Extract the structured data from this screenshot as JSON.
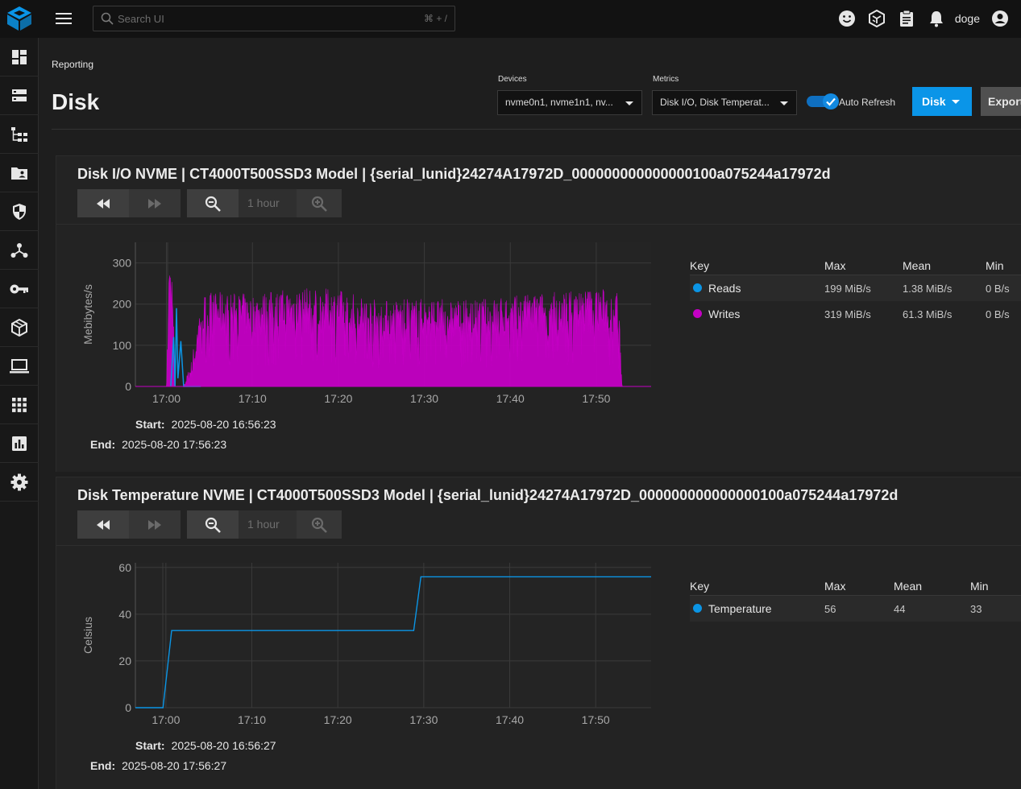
{
  "header": {
    "search_placeholder": "Search UI",
    "search_shortcut": "⌘ + /",
    "username": "doge",
    "icons": [
      "smile-icon",
      "truecommand-icon",
      "clipboard-icon",
      "bell-icon",
      "account-circle-icon"
    ]
  },
  "sidebar": {
    "items": [
      {
        "name": "dashboard",
        "icon": "dashboard-icon"
      },
      {
        "name": "storage",
        "icon": "storage-icon"
      },
      {
        "name": "datasets",
        "icon": "datasets-icon"
      },
      {
        "name": "shares",
        "icon": "folder-shared-icon"
      },
      {
        "name": "data-protection",
        "icon": "security-icon"
      },
      {
        "name": "network",
        "icon": "network-icon"
      },
      {
        "name": "credentials",
        "icon": "key-icon"
      },
      {
        "name": "virtualization",
        "icon": "cube-icon"
      },
      {
        "name": "apps",
        "icon": "laptop-icon"
      },
      {
        "name": "system",
        "icon": "apps-grid-icon"
      },
      {
        "name": "reporting",
        "icon": "insert-chart-icon"
      },
      {
        "name": "settings",
        "icon": "settings-icon"
      }
    ]
  },
  "page": {
    "breadcrumb": "Reporting",
    "title": "Disk",
    "devices_label": "Devices",
    "devices_value": "nvme0n1, nvme1n1, nv...",
    "metrics_label": "Metrics",
    "metrics_value": "Disk I/O, Disk Temperat...",
    "auto_refresh_label": "Auto Refresh",
    "auto_refresh_on": true,
    "disk_button": "Disk",
    "export_button": "Export"
  },
  "cards": [
    {
      "title": "Disk I/O NVME | CT4000T500SSD3 Model | {serial_lunid}24274A17972D_000000000000000100a075244a17972d",
      "zoom_label": "1 hour",
      "legend": {
        "headers": [
          "Key",
          "Max",
          "Mean",
          "Min"
        ],
        "rows": [
          {
            "key": "Reads",
            "max": "199 MiB/s",
            "mean": "1.38 MiB/s",
            "min": "0 B/s",
            "color": "#0b95e5"
          },
          {
            "key": "Writes",
            "max": "319 MiB/s",
            "mean": "61.3 MiB/s",
            "min": "0 B/s",
            "color": "#c400c4"
          }
        ]
      },
      "start_label": "Start:",
      "start": "2025-08-20 16:56:23",
      "end_label": "End:",
      "end": "2025-08-20 17:56:23"
    },
    {
      "title": "Disk Temperature NVME | CT4000T500SSD3 Model | {serial_lunid}24274A17972D_000000000000000100a075244a17972d",
      "zoom_label": "1 hour",
      "legend": {
        "headers": [
          "Key",
          "Max",
          "Mean",
          "Min"
        ],
        "rows": [
          {
            "key": "Temperature",
            "max": "56",
            "mean": "44",
            "min": "33",
            "color": "#0b95e5"
          }
        ]
      },
      "start_label": "Start:",
      "start": "2025-08-20 16:56:27",
      "end_label": "End:",
      "end": "2025-08-20 17:56:27"
    }
  ],
  "chart_data": [
    {
      "type": "area",
      "ylabel": "Mebibytes/s",
      "xlim": [
        "16:56:23",
        "17:56:23"
      ],
      "ylim": [
        0,
        350
      ],
      "yticks": [
        "0",
        "100",
        "200",
        "300"
      ],
      "xticks": [
        "17:00",
        "17:10",
        "17:20",
        "17:30",
        "17:40",
        "17:50"
      ],
      "grid": true,
      "series": [
        {
          "name": "Reads",
          "color": "#0b95e5",
          "x": [
            "17:00:30",
            "17:00:50",
            "17:01:00",
            "17:01:10",
            "17:01:20",
            "17:01:40",
            "17:02:00",
            "17:04:00"
          ],
          "values": [
            0,
            120,
            0,
            190,
            20,
            110,
            0,
            0
          ]
        },
        {
          "name": "Writes",
          "color": "#c400c4",
          "x": [
            "16:56:23",
            "17:00:00",
            "17:00:20",
            "17:00:40",
            "17:01:00",
            "17:02:00",
            "17:03:00",
            "17:04:00",
            "17:05:00",
            "17:10:00",
            "17:15:00",
            "17:20:00",
            "17:25:00",
            "17:30:00",
            "17:35:00",
            "17:40:00",
            "17:45:00",
            "17:50:00",
            "17:52:30",
            "17:53:00",
            "17:56:23"
          ],
          "values": [
            0,
            0,
            319,
            260,
            0,
            0,
            60,
            210,
            220,
            215,
            230,
            225,
            200,
            205,
            200,
            210,
            220,
            230,
            220,
            0,
            0
          ]
        }
      ]
    },
    {
      "type": "line",
      "ylabel": "Celsius",
      "xlim": [
        "16:56:27",
        "17:56:27"
      ],
      "ylim": [
        0,
        62
      ],
      "yticks": [
        "0",
        "20",
        "40",
        "60"
      ],
      "xticks": [
        "17:00",
        "17:10",
        "17:20",
        "17:30",
        "17:40",
        "17:50"
      ],
      "grid": true,
      "series": [
        {
          "name": "Temperature",
          "color": "#0b95e5",
          "x": [
            "16:56:27",
            "16:59:40",
            "17:00:40",
            "17:28:50",
            "17:29:40",
            "17:56:27"
          ],
          "values": [
            0,
            0,
            33,
            33,
            56,
            56
          ]
        }
      ]
    }
  ]
}
